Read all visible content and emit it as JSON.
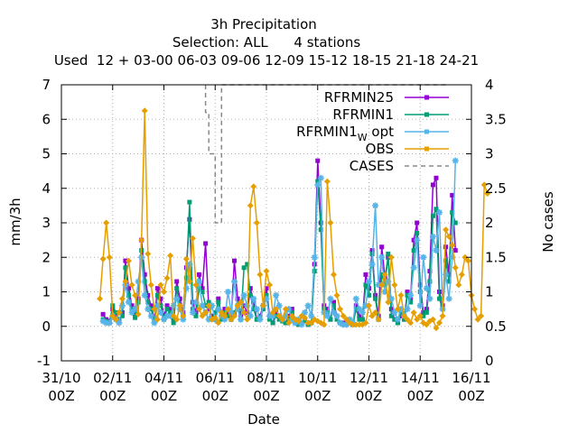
{
  "chart_data": {
    "type": "line",
    "title": "3h Precipitation",
    "subtitle": "Selection: ALL      4 stations",
    "used_line": "Used  12 + 03-00 06-03 09-06 12-09 15-12 18-15 21-18 24-21",
    "xlabel": "Date",
    "ylabel": "mm/3h",
    "y2label": "No cases",
    "xlim": [
      "2011-10-31 00:00",
      "2011-11-16 00:00"
    ],
    "ylim": [
      -1,
      7
    ],
    "y2lim": [
      0,
      4
    ],
    "xticks": [
      {
        "top": "31/10",
        "bottom": "00Z"
      },
      {
        "top": "02/11",
        "bottom": "00Z"
      },
      {
        "top": "04/11",
        "bottom": "00Z"
      },
      {
        "top": "06/11",
        "bottom": "00Z"
      },
      {
        "top": "08/11",
        "bottom": "00Z"
      },
      {
        "top": "10/11",
        "bottom": "00Z"
      },
      {
        "top": "12/11",
        "bottom": "00Z"
      },
      {
        "top": "14/11",
        "bottom": "00Z"
      },
      {
        "top": "16/11",
        "bottom": "00Z"
      }
    ],
    "yticks": [
      "-1",
      "0",
      "1",
      "2",
      "3",
      "4",
      "5",
      "6",
      "7"
    ],
    "y2ticks": [
      "0",
      "0.5",
      "1",
      "1.5",
      "2",
      "2.5",
      "3",
      "3.5",
      "4"
    ],
    "grid": true,
    "legend_position": "top-right",
    "x_step_hours": 3,
    "series": [
      {
        "name": "RFRMIN25",
        "color": "#9400d3",
        "x_start": "2011-11-01 15:00",
        "values": [
          0.35,
          0.2,
          0.15,
          0.5,
          0.3,
          0.15,
          0.4,
          1.9,
          1.1,
          0.6,
          0.3,
          0.8,
          2.5,
          1.5,
          0.9,
          0.6,
          0.2,
          1.1,
          0.8,
          0.3,
          0.6,
          0.5,
          0.2,
          1.3,
          0.8,
          0.4,
          1.7,
          3.1,
          0.7,
          0.4,
          1.5,
          1.1,
          2.4,
          0.5,
          0.3,
          0.2,
          0.8,
          0.3,
          0.5,
          0.4,
          0.2,
          1.9,
          0.8,
          0.3,
          0.6,
          0.4,
          1.1,
          0.7,
          0.2,
          0.3,
          0.6,
          1.1,
          0.3,
          0.1,
          0.4,
          0.3,
          0.2,
          0.1,
          0.3,
          0.5,
          0.1,
          0.05,
          0.1,
          0.2,
          0.05,
          0.1,
          1.8,
          4.8,
          3.0,
          0.6,
          0.5,
          0.2,
          0.7,
          0.3,
          0.1,
          0.1,
          0.05,
          0.1,
          0.05,
          0.6,
          0.3,
          0.2,
          1.5,
          1.1,
          2.2,
          0.9,
          0.3,
          2.3,
          1.4,
          2.0,
          0.5,
          0.2,
          0.1,
          0.3,
          0.2,
          1.0,
          0.8,
          2.5,
          3.0,
          1.2,
          0.4,
          0.5,
          1.6,
          4.1,
          4.3,
          1.0,
          0.6,
          2.3,
          1.5,
          3.8,
          2.2
        ]
      },
      {
        "name": "RFRMIN1",
        "color": "#009e73",
        "x_start": "2011-11-01 15:00",
        "values": [
          0.2,
          0.15,
          0.1,
          0.6,
          0.4,
          0.2,
          0.3,
          1.7,
          0.9,
          0.5,
          0.25,
          0.7,
          2.2,
          1.3,
          0.7,
          0.5,
          0.15,
          0.9,
          0.6,
          0.2,
          0.5,
          0.4,
          0.1,
          1.1,
          0.6,
          0.3,
          1.4,
          3.6,
          0.5,
          0.3,
          1.1,
          1.0,
          0.6,
          0.7,
          0.2,
          0.4,
          0.7,
          0.2,
          0.4,
          0.3,
          0.2,
          0.4,
          0.6,
          0.2,
          1.7,
          1.8,
          0.9,
          0.5,
          0.2,
          0.25,
          0.5,
          0.9,
          0.2,
          0.1,
          0.3,
          0.2,
          0.15,
          0.1,
          0.2,
          0.4,
          0.1,
          0.05,
          0.1,
          0.15,
          0.05,
          0.1,
          1.6,
          4.2,
          2.8,
          0.5,
          0.4,
          0.2,
          0.6,
          0.2,
          0.1,
          0.05,
          0.05,
          0.1,
          0.05,
          0.5,
          0.2,
          0.2,
          1.2,
          0.9,
          2.1,
          0.8,
          0.2,
          1.5,
          1.2,
          2.1,
          0.3,
          0.2,
          0.1,
          0.4,
          0.2,
          0.9,
          0.7,
          2.2,
          2.7,
          1.0,
          0.3,
          0.4,
          1.3,
          3.2,
          3.4,
          0.8,
          0.5,
          1.9,
          1.3,
          3.3,
          3.0
        ]
      },
      {
        "name": "RFRMIN1_W opt",
        "color": "#56b4e9",
        "x_start": "2011-11-01 15:00",
        "values": [
          0.15,
          0.1,
          0.1,
          0.3,
          0.2,
          0.1,
          0.6,
          1.2,
          0.7,
          0.4,
          0.5,
          1.3,
          2.0,
          0.9,
          0.5,
          0.3,
          0.1,
          0.6,
          0.4,
          0.2,
          0.3,
          0.3,
          0.6,
          0.8,
          0.5,
          0.2,
          1.1,
          1.8,
          0.4,
          0.7,
          1.3,
          0.6,
          0.4,
          0.2,
          0.6,
          0.2,
          0.5,
          0.3,
          0.2,
          1.0,
          0.4,
          1.3,
          0.5,
          0.2,
          0.9,
          0.6,
          0.3,
          0.8,
          0.5,
          0.2,
          0.6,
          0.8,
          0.3,
          0.3,
          0.9,
          0.6,
          0.2,
          0.3,
          0.5,
          0.2,
          0.1,
          0.2,
          0.05,
          0.4,
          0.6,
          0.3,
          2.0,
          4.1,
          4.3,
          0.4,
          0.3,
          0.8,
          0.4,
          0.3,
          0.1,
          0.05,
          0.05,
          0.2,
          0.1,
          0.8,
          0.5,
          0.4,
          0.6,
          1.3,
          1.8,
          3.5,
          1.2,
          2.0,
          1.0,
          1.3,
          0.8,
          0.4,
          0.2,
          0.5,
          0.3,
          0.5,
          0.9,
          1.7,
          2.5,
          0.6,
          2.0,
          1.1,
          0.8,
          2.6,
          2.2,
          3.3,
          0.5,
          1.5,
          0.8,
          2.0,
          4.8
        ]
      },
      {
        "name": "OBS",
        "color": "#e69f00",
        "x_start": "2011-11-01 12:00",
        "values": [
          0.8,
          1.95,
          3.0,
          2.0,
          0.3,
          0.2,
          0.4,
          0.8,
          1.3,
          1.9,
          1.2,
          0.9,
          0.35,
          2.5,
          6.25,
          2.1,
          1.2,
          0.5,
          0.2,
          1.2,
          1.0,
          1.4,
          2.05,
          0.3,
          0.2,
          0.6,
          0.3,
          1.95,
          1.3,
          2.55,
          1.2,
          0.5,
          0.3,
          0.4,
          0.6,
          0.2,
          0.25,
          0.1,
          0.4,
          0.3,
          0.5,
          0.2,
          0.3,
          0.6,
          0.7,
          0.4,
          0.2,
          3.5,
          4.05,
          3.0,
          1.5,
          0.6,
          1.6,
          1.2,
          0.4,
          0.5,
          0.3,
          0.2,
          0.5,
          0.1,
          0.3,
          0.2,
          0.15,
          0.3,
          0.25,
          0.1,
          0.1,
          0.2,
          0.15,
          0.1,
          0.05,
          4.2,
          3.0,
          1.5,
          0.9,
          0.5,
          0.3,
          0.2,
          0.1,
          0.05,
          0.05,
          0.05,
          0.05,
          0.1,
          0.6,
          0.3,
          0.4,
          0.2,
          1.2,
          1.5,
          0.7,
          2.0,
          1.2,
          0.5,
          0.9,
          0.3,
          0.2,
          0.1,
          0.4,
          0.2,
          0.3,
          0.1,
          0.05,
          0.15,
          0.2,
          -0.05,
          0.1,
          0.3,
          2.8,
          2.6,
          2.35,
          1.7,
          1.2,
          1.5,
          2.0,
          1.9,
          0.9,
          0.5,
          0.2,
          0.3,
          4.1,
          3.85
        ]
      },
      {
        "name": "CASES",
        "color": "#888888",
        "axis": "y2",
        "dashed": true,
        "points": [
          [
            "2011-11-05 15:00",
            4.0
          ],
          [
            "2011-11-05 15:00",
            3.6
          ],
          [
            "2011-11-05 18:00",
            3.6
          ],
          [
            "2011-11-05 18:00",
            3.0
          ],
          [
            "2011-11-06 00:00",
            3.0
          ],
          [
            "2011-11-06 00:00",
            2.0
          ],
          [
            "2011-11-06 06:00",
            2.0
          ],
          [
            "2011-11-06 06:00",
            4.0
          ],
          [
            "2011-11-15 00:00",
            4.0
          ]
        ]
      }
    ],
    "legend": [
      {
        "label": "RFRMIN25",
        "series": 0
      },
      {
        "label": "RFRMIN1",
        "series": 1
      },
      {
        "label_main": "RFRMIN1",
        "label_sub": "W",
        "label_after": "opt",
        "series": 2
      },
      {
        "label": "OBS",
        "series": 3
      },
      {
        "label": "CASES",
        "series": 4
      }
    ]
  }
}
